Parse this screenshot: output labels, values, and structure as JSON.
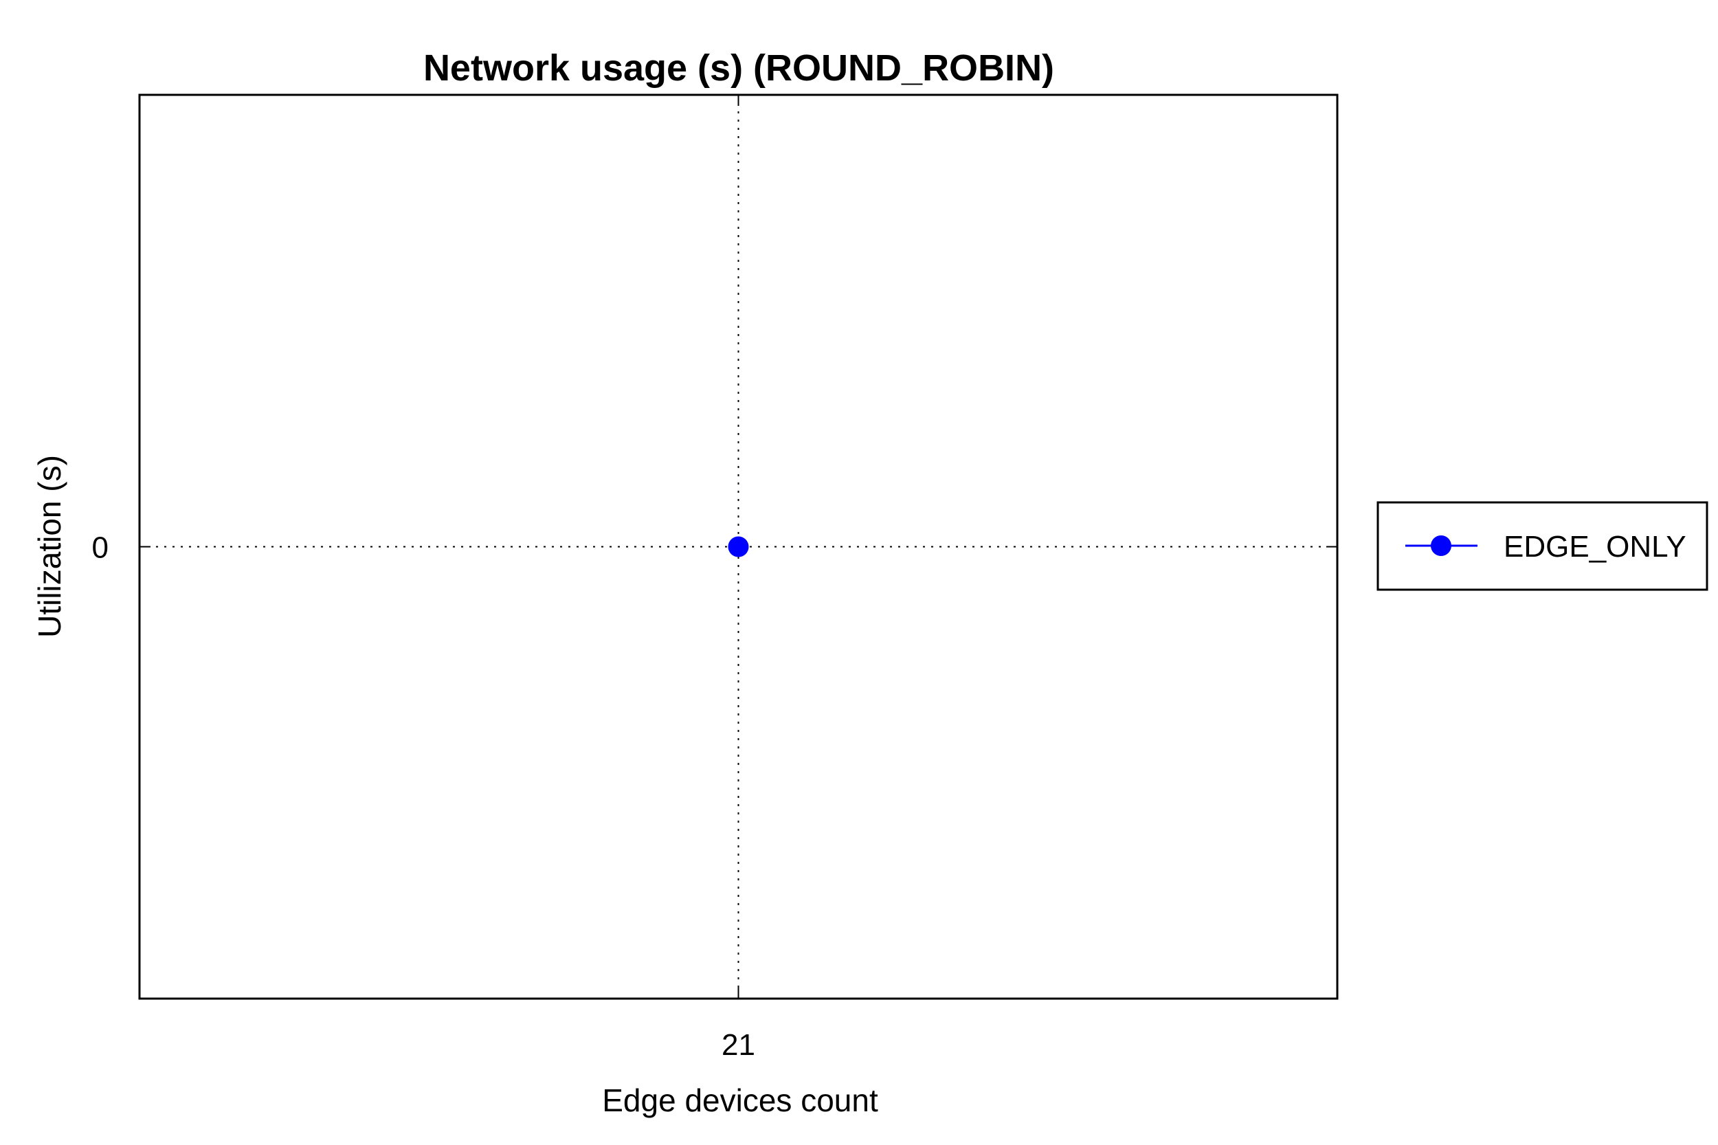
{
  "chart_data": {
    "type": "line",
    "title": "Network usage (s) (ROUND_ROBIN)",
    "xlabel": "Edge devices count",
    "ylabel": "Utilization (s)",
    "x_ticks": [
      "21"
    ],
    "y_ticks": [
      "0"
    ],
    "x": [
      21
    ],
    "xlim": [
      20,
      22
    ],
    "ylim": [
      -1,
      1
    ],
    "grid": true,
    "legend_position": "outside-right",
    "series": [
      {
        "name": "EDGE_ONLY",
        "x": [
          21
        ],
        "values": [
          0
        ],
        "color": "#0000ff",
        "marker": "circle"
      }
    ]
  }
}
